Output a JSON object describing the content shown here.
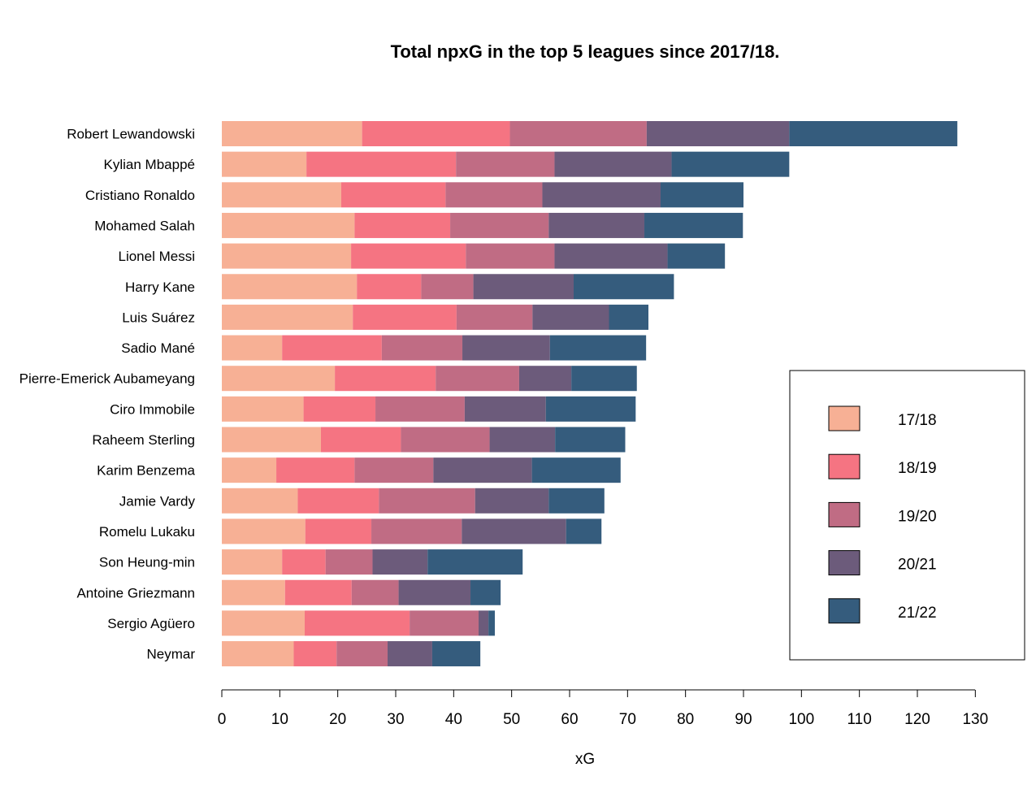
{
  "chart_data": {
    "type": "bar",
    "orientation": "horizontal",
    "stacked": true,
    "title": "Total npxG in the top 5 leagues since 2017/18.",
    "xlabel": "xG",
    "ylabel": "",
    "xlim": [
      0,
      130
    ],
    "xticks": [
      0,
      10,
      20,
      30,
      40,
      50,
      60,
      70,
      80,
      90,
      100,
      110,
      120,
      130
    ],
    "grid": false,
    "legend_position": "right",
    "categories": [
      "Robert Lewandowski",
      "Kylian Mbappé",
      "Cristiano Ronaldo",
      "Mohamed Salah",
      "Lionel Messi",
      "Harry Kane",
      "Luis Suárez",
      "Sadio Mané",
      "Pierre-Emerick Aubameyang",
      "Ciro Immobile",
      "Raheem Sterling",
      "Karim Benzema",
      "Jamie Vardy",
      "Romelu Lukaku",
      "Son Heung-min",
      "Antoine Griezmann",
      "Sergio Agüero",
      "Neymar"
    ],
    "series": [
      {
        "name": "17/18",
        "color": "#F7B095",
        "values": [
          24.2,
          14.6,
          20.6,
          22.9,
          22.3,
          23.3,
          22.6,
          10.4,
          19.5,
          14.1,
          17.1,
          9.4,
          13.1,
          14.4,
          10.4,
          10.9,
          14.3,
          12.4
        ]
      },
      {
        "name": "18/19",
        "color": "#F57482",
        "values": [
          25.5,
          25.8,
          18.0,
          16.5,
          19.8,
          11.1,
          17.9,
          17.2,
          17.4,
          12.4,
          13.8,
          13.5,
          14.0,
          11.4,
          7.5,
          11.5,
          18.1,
          7.4
        ]
      },
      {
        "name": "19/20",
        "color": "#C06C84",
        "values": [
          23.6,
          17.0,
          16.7,
          17.0,
          15.3,
          9.0,
          13.1,
          13.9,
          14.4,
          15.4,
          15.3,
          13.6,
          16.6,
          15.6,
          8.1,
          8.1,
          11.9,
          8.8
        ]
      },
      {
        "name": "20/21",
        "color": "#6C5B7B",
        "values": [
          24.6,
          20.2,
          20.4,
          16.5,
          19.5,
          17.3,
          13.2,
          15.1,
          9.0,
          14.0,
          11.3,
          17.0,
          12.7,
          18.0,
          9.5,
          12.4,
          1.7,
          7.7
        ]
      },
      {
        "name": "21/22",
        "color": "#355C7D",
        "values": [
          29.0,
          20.3,
          14.3,
          17.0,
          9.9,
          17.3,
          6.8,
          16.6,
          11.3,
          15.5,
          12.1,
          15.3,
          9.6,
          6.1,
          16.4,
          5.2,
          1.1,
          8.3
        ]
      }
    ]
  }
}
